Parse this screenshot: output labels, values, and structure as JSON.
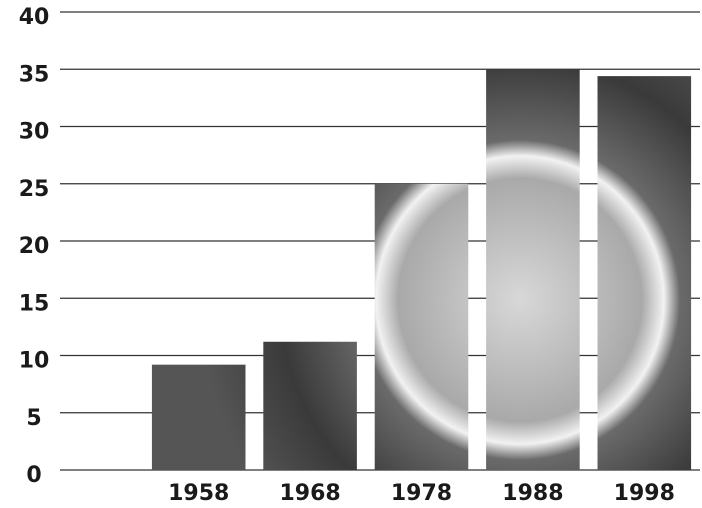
{
  "chart_data": {
    "type": "bar",
    "categories": [
      "1958",
      "1968",
      "1978",
      "1988",
      "1998"
    ],
    "values": [
      9.2,
      11.2,
      25,
      35,
      34.4
    ],
    "ylim": [
      0,
      40
    ],
    "yticks": [
      0,
      5,
      10,
      15,
      20,
      25,
      30,
      35,
      40
    ],
    "grid": true
  }
}
